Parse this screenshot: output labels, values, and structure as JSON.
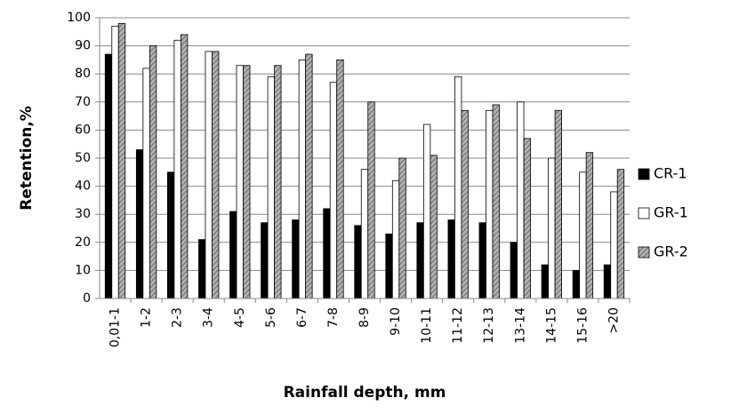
{
  "chart_data": {
    "type": "bar",
    "x_label": "Rainfall depth, mm",
    "y_label": "Retention,%",
    "categories": [
      "0,01-1",
      "1-2",
      "2-3",
      "3-4",
      "4-5",
      "5-6",
      "6-7",
      "7-8",
      "8-9",
      "9-10",
      "10-11",
      "11-12",
      "12-13",
      "13-14",
      "14-15",
      "15-16",
      ">20"
    ],
    "series": [
      {
        "name": "CR-1",
        "color": "#000000",
        "values": [
          87,
          53,
          45,
          21,
          31,
          27,
          28,
          32,
          26,
          23,
          27,
          28,
          27,
          20,
          12,
          10,
          12
        ]
      },
      {
        "name": "GR-1",
        "color": "#ffffff",
        "values": [
          97,
          82,
          92,
          88,
          83,
          79,
          85,
          77,
          46,
          42,
          62,
          79,
          67,
          70,
          50,
          45,
          38
        ]
      },
      {
        "name": "GR-2",
        "color": "#b0b0b0",
        "values": [
          98,
          90,
          94,
          88,
          83,
          83,
          87,
          85,
          70,
          50,
          51,
          67,
          69,
          57,
          67,
          52,
          46
        ]
      }
    ],
    "ylim": [
      0,
      100
    ],
    "yticks": [
      0,
      10,
      20,
      30,
      40,
      50,
      60,
      70,
      80,
      90,
      100
    ],
    "grid": true,
    "legend": "right"
  }
}
